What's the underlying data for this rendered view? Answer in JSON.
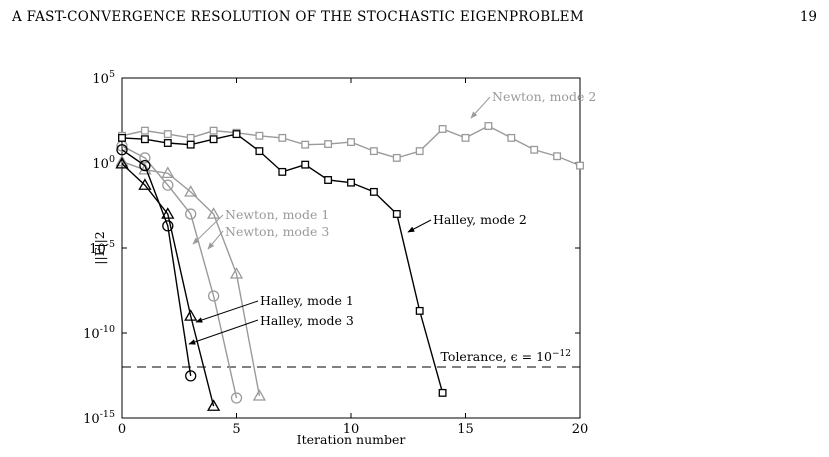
{
  "header": {
    "running_title": "A FAST-CONVERGENCE RESOLUTION OF THE STOCHASTIC EIGENPROBLEM",
    "page_number": "19"
  },
  "chart_data": {
    "type": "line",
    "xlabel": "Iteration number",
    "ylabel": "||F||2",
    "xlim": [
      0,
      20
    ],
    "ylim": [
      1e-15,
      100000.0
    ],
    "y_scale": "log",
    "x_ticks": [
      "0",
      "5",
      "10",
      "15",
      "20"
    ],
    "y_ticks": [
      {
        "base": "10",
        "exp": "5",
        "value": 100000.0
      },
      {
        "base": "10",
        "exp": "0",
        "value": 1
      },
      {
        "base": "10",
        "exp": "-5",
        "value": 1e-05
      },
      {
        "base": "10",
        "exp": "-10",
        "value": 1e-10
      },
      {
        "base": "10",
        "exp": "-15",
        "value": 1e-15
      }
    ],
    "grid": false,
    "tolerance": {
      "label": "Tolerance, ϵ = 10",
      "exponent": "−12",
      "value": 1e-12
    },
    "series": [
      {
        "name": "Newton, mode 2",
        "color": "#9a9a9a",
        "marker": "square",
        "x": [
          0,
          1,
          2,
          3,
          4,
          5,
          6,
          7,
          8,
          9,
          10,
          11,
          12,
          13,
          14,
          15,
          16,
          17,
          18,
          19,
          20
        ],
        "y": [
          40,
          80,
          50,
          30,
          80,
          60,
          40,
          30,
          12,
          13,
          17,
          5,
          2,
          5,
          100,
          30,
          150,
          30,
          6,
          2.5,
          0.7
        ]
      },
      {
        "name": "Halley, mode 2",
        "color": "#000000",
        "marker": "square",
        "x": [
          0,
          1,
          2,
          3,
          4,
          5,
          6,
          7,
          8,
          9,
          10,
          11,
          12,
          13,
          14
        ],
        "y": [
          30,
          25,
          15,
          12,
          25,
          50,
          5,
          0.3,
          0.8,
          0.1,
          0.07,
          0.02,
          0.001,
          2e-09,
          3e-14
        ]
      },
      {
        "name": "Newton, mode 1",
        "color": "#9a9a9a",
        "marker": "circle",
        "x": [
          0,
          1,
          2,
          3,
          4,
          5
        ],
        "y": [
          10,
          2,
          0.05,
          0.001,
          1.5e-08,
          1.5e-14
        ]
      },
      {
        "name": "Newton, mode 3",
        "color": "#9a9a9a",
        "marker": "triangle",
        "x": [
          0,
          1,
          2,
          3,
          4,
          5,
          6
        ],
        "y": [
          1.2,
          0.4,
          0.25,
          0.02,
          0.001,
          3e-07,
          2e-14
        ]
      },
      {
        "name": "Halley, mode 1",
        "color": "#000000",
        "marker": "circle",
        "x": [
          0,
          1,
          2,
          3
        ],
        "y": [
          6,
          0.7,
          0.0002,
          3e-13
        ]
      },
      {
        "name": "Halley, mode 3",
        "color": "#000000",
        "marker": "triangle",
        "x": [
          0,
          1,
          2,
          3,
          4
        ],
        "y": [
          0.9,
          0.05,
          0.001,
          1e-09,
          5e-15
        ]
      }
    ],
    "annotations": [
      {
        "text": "Newton, mode 2",
        "series": "Newton, mode 2",
        "color": "#9a9a9a"
      },
      {
        "text": "Newton, mode 1",
        "series": "Newton, mode 1",
        "color": "#9a9a9a"
      },
      {
        "text": "Newton, mode 3",
        "series": "Newton, mode 3",
        "color": "#9a9a9a"
      },
      {
        "text": "Halley, mode 2",
        "series": "Halley, mode 2",
        "color": "#000000"
      },
      {
        "text": "Halley, mode 1",
        "series": "Halley, mode 1",
        "color": "#000000"
      },
      {
        "text": "Halley, mode 3",
        "series": "Halley, mode 3",
        "color": "#000000"
      }
    ]
  }
}
